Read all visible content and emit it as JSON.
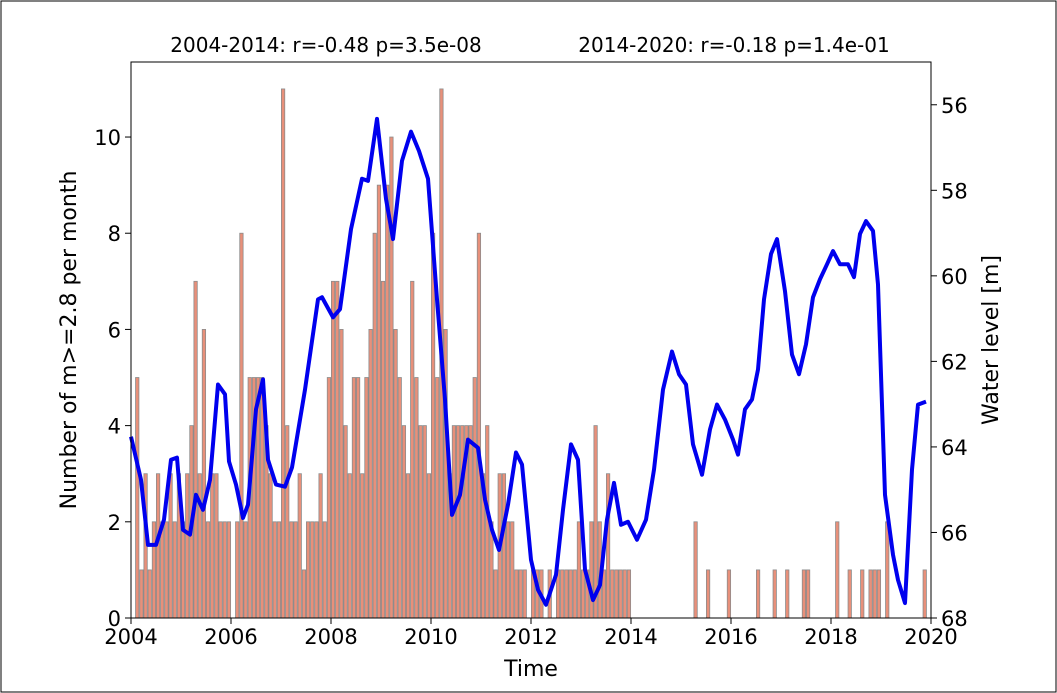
{
  "chart_data": {
    "type": "bar",
    "annotations": [
      "2004-2014: r=-0.48 p=3.5e-08",
      "2014-2020: r=-0.18 p=1.4e-01"
    ],
    "xlabel": "Time",
    "ylabel": "Number of m>=2.8 per month",
    "y2label": "Water level [m]",
    "xlim": [
      2004,
      2020
    ],
    "xticks": [
      2004,
      2006,
      2008,
      2010,
      2012,
      2014,
      2016,
      2018,
      2020
    ],
    "ylim": [
      0,
      11.56
    ],
    "yticks": [
      0,
      2,
      4,
      6,
      8,
      10
    ],
    "y2lim": [
      68,
      55
    ],
    "y2ticks": [
      56,
      58,
      60,
      62,
      64,
      66,
      68
    ],
    "color": "#e8907a",
    "x": [
      2004,
      2004.083,
      2004.167,
      2004.25,
      2004.333,
      2004.417,
      2004.5,
      2004.583,
      2004.667,
      2004.75,
      2004.833,
      2004.917,
      2005,
      2005.083,
      2005.167,
      2005.25,
      2005.333,
      2005.417,
      2005.5,
      2005.583,
      2005.667,
      2005.75,
      2005.833,
      2005.917,
      2006,
      2006.083,
      2006.167,
      2006.25,
      2006.333,
      2006.417,
      2006.5,
      2006.583,
      2006.667,
      2006.75,
      2006.833,
      2006.917,
      2007,
      2007.083,
      2007.167,
      2007.25,
      2007.333,
      2007.417,
      2007.5,
      2007.583,
      2007.667,
      2007.75,
      2007.833,
      2007.917,
      2008,
      2008.083,
      2008.167,
      2008.25,
      2008.333,
      2008.417,
      2008.5,
      2008.583,
      2008.667,
      2008.75,
      2008.833,
      2008.917,
      2009,
      2009.083,
      2009.167,
      2009.25,
      2009.333,
      2009.417,
      2009.5,
      2009.583,
      2009.667,
      2009.75,
      2009.833,
      2009.917,
      2010,
      2010.083,
      2010.167,
      2010.25,
      2010.333,
      2010.417,
      2010.5,
      2010.583,
      2010.667,
      2010.75,
      2010.833,
      2010.917,
      2011,
      2011.083,
      2011.167,
      2011.25,
      2011.333,
      2011.417,
      2011.5,
      2011.583,
      2011.667,
      2011.75,
      2011.833,
      2011.917,
      2012,
      2012.083,
      2012.167,
      2012.25,
      2012.333,
      2012.417,
      2012.5,
      2012.583,
      2012.667,
      2012.75,
      2012.833,
      2012.917,
      2013,
      2013.083,
      2013.167,
      2013.25,
      2013.333,
      2013.417,
      2013.5,
      2013.583,
      2013.667,
      2013.75,
      2013.833,
      2013.917,
      2014,
      2014.083,
      2014.167,
      2014.25,
      2014.333,
      2014.417,
      2014.5,
      2014.583,
      2014.667,
      2014.75,
      2014.833,
      2014.917,
      2015,
      2015.083,
      2015.167,
      2015.25,
      2015.333,
      2015.417,
      2015.5,
      2015.583,
      2015.667,
      2015.75,
      2015.833,
      2015.917,
      2016,
      2016.083,
      2016.167,
      2016.25,
      2016.333,
      2016.417,
      2016.5,
      2016.583,
      2016.667,
      2016.75,
      2016.833,
      2016.917,
      2017,
      2017.083,
      2017.167,
      2017.25,
      2017.333,
      2017.417,
      2017.5,
      2017.583,
      2017.667,
      2017.75,
      2017.833,
      2017.917,
      2018,
      2018.083,
      2018.167,
      2018.25,
      2018.333,
      2018.417,
      2018.5,
      2018.583,
      2018.667,
      2018.75,
      2018.833,
      2018.917,
      2019,
      2019.083,
      2019.167,
      2019.25,
      2019.333,
      2019.417,
      2019.5,
      2019.583,
      2019.667,
      2019.75,
      2019.833,
      2019.917
    ],
    "values": [
      0,
      5,
      1,
      3,
      1,
      2,
      3,
      2,
      2,
      3,
      2,
      3,
      2,
      3,
      4,
      7,
      3,
      6,
      2,
      3,
      3,
      2,
      2,
      2,
      0,
      2,
      8,
      2,
      5,
      5,
      5,
      5,
      4,
      3,
      2,
      2,
      11,
      4,
      2,
      2,
      3,
      1,
      2,
      2,
      2,
      3,
      2,
      5,
      7,
      7,
      6,
      4,
      3,
      5,
      5,
      3,
      5,
      6,
      8,
      9,
      7,
      9,
      10,
      6,
      5,
      4,
      3,
      7,
      5,
      4,
      4,
      3,
      8,
      5,
      11,
      6,
      3,
      4,
      4,
      4,
      4,
      4,
      5,
      8,
      3,
      4,
      2,
      1,
      3,
      3,
      2,
      2,
      1,
      1,
      1,
      0,
      1,
      1,
      1,
      0,
      1,
      0,
      1,
      1,
      1,
      1,
      1,
      2,
      1,
      1,
      2,
      4,
      2,
      1,
      3,
      1,
      1,
      1,
      1,
      1,
      0,
      0,
      0,
      0,
      0,
      0,
      0,
      0,
      0,
      0,
      0,
      0,
      0,
      0,
      0,
      2,
      0,
      0,
      1,
      0,
      0,
      0,
      0,
      1,
      0,
      0,
      0,
      0,
      0,
      0,
      1,
      0,
      0,
      0,
      1,
      0,
      0,
      1,
      0,
      0,
      0,
      1,
      1,
      0,
      0,
      0,
      0,
      0,
      0,
      2,
      0,
      0,
      1,
      0,
      0,
      1,
      0,
      1,
      1,
      1,
      0,
      2,
      0,
      0,
      0,
      0,
      0,
      0,
      0,
      0,
      1,
      0
    ],
    "line": {
      "type": "line",
      "axis": "y2",
      "color": "#0000ee",
      "x": [
        2004.0,
        2004.2,
        2004.34,
        2004.5,
        2004.66,
        2004.8,
        2004.92,
        2005.04,
        2005.18,
        2005.3,
        2005.44,
        2005.58,
        2005.74,
        2005.88,
        2005.96,
        2006.1,
        2006.24,
        2006.34,
        2006.5,
        2006.64,
        2006.74,
        2006.9,
        2007.08,
        2007.22,
        2007.48,
        2007.74,
        2007.82,
        2008.04,
        2008.18,
        2008.4,
        2008.62,
        2008.74,
        2008.92,
        2009.1,
        2009.24,
        2009.42,
        2009.6,
        2009.76,
        2009.94,
        2010.12,
        2010.28,
        2010.42,
        2010.58,
        2010.74,
        2010.94,
        2011.08,
        2011.22,
        2011.36,
        2011.54,
        2011.7,
        2011.82,
        2012.0,
        2012.14,
        2012.3,
        2012.5,
        2012.64,
        2012.8,
        2012.94,
        2013.08,
        2013.24,
        2013.38,
        2013.52,
        2013.66,
        2013.8,
        2013.94,
        2014.12,
        2014.3,
        2014.46,
        2014.64,
        2014.82,
        2014.96,
        2015.1,
        2015.24,
        2015.42,
        2015.58,
        2015.72,
        2015.88,
        2016.04,
        2016.14,
        2016.28,
        2016.42,
        2016.54,
        2016.66,
        2016.8,
        2016.92,
        2017.08,
        2017.22,
        2017.36,
        2017.5,
        2017.64,
        2017.78,
        2017.92,
        2018.04,
        2018.18,
        2018.34,
        2018.46,
        2018.58,
        2018.7,
        2018.84,
        2018.94,
        2019.08,
        2019.24,
        2019.34,
        2019.48,
        2019.62,
        2019.74,
        2019.9
      ],
      "values": [
        63.76,
        64.77,
        66.29,
        66.29,
        65.7,
        64.3,
        64.25,
        65.94,
        66.05,
        65.12,
        65.47,
        64.77,
        62.54,
        62.77,
        64.34,
        64.88,
        65.66,
        65.35,
        63.12,
        62.42,
        64.3,
        64.88,
        64.93,
        64.48,
        62.66,
        60.55,
        60.5,
        60.97,
        60.78,
        58.91,
        57.73,
        57.78,
        56.33,
        58.2,
        59.14,
        57.31,
        56.63,
        57.08,
        57.73,
        60.55,
        62.89,
        65.59,
        65.12,
        63.83,
        64.02,
        65.23,
        65.94,
        66.41,
        65.35,
        64.13,
        64.41,
        66.64,
        67.34,
        67.69,
        66.99,
        65.47,
        63.94,
        64.3,
        66.87,
        67.58,
        67.23,
        65.7,
        64.84,
        65.82,
        65.75,
        66.17,
        65.7,
        64.53,
        62.66,
        61.77,
        62.3,
        62.54,
        63.94,
        64.65,
        63.59,
        63.01,
        63.36,
        63.83,
        64.18,
        63.12,
        62.89,
        62.19,
        60.55,
        59.49,
        59.14,
        60.36,
        61.84,
        62.3,
        61.6,
        60.5,
        60.08,
        59.73,
        59.42,
        59.73,
        59.73,
        60.03,
        59.02,
        58.72,
        58.95,
        60.2,
        65.12,
        66.52,
        67.11,
        67.65,
        64.53,
        63.01,
        62.94
      ]
    }
  }
}
